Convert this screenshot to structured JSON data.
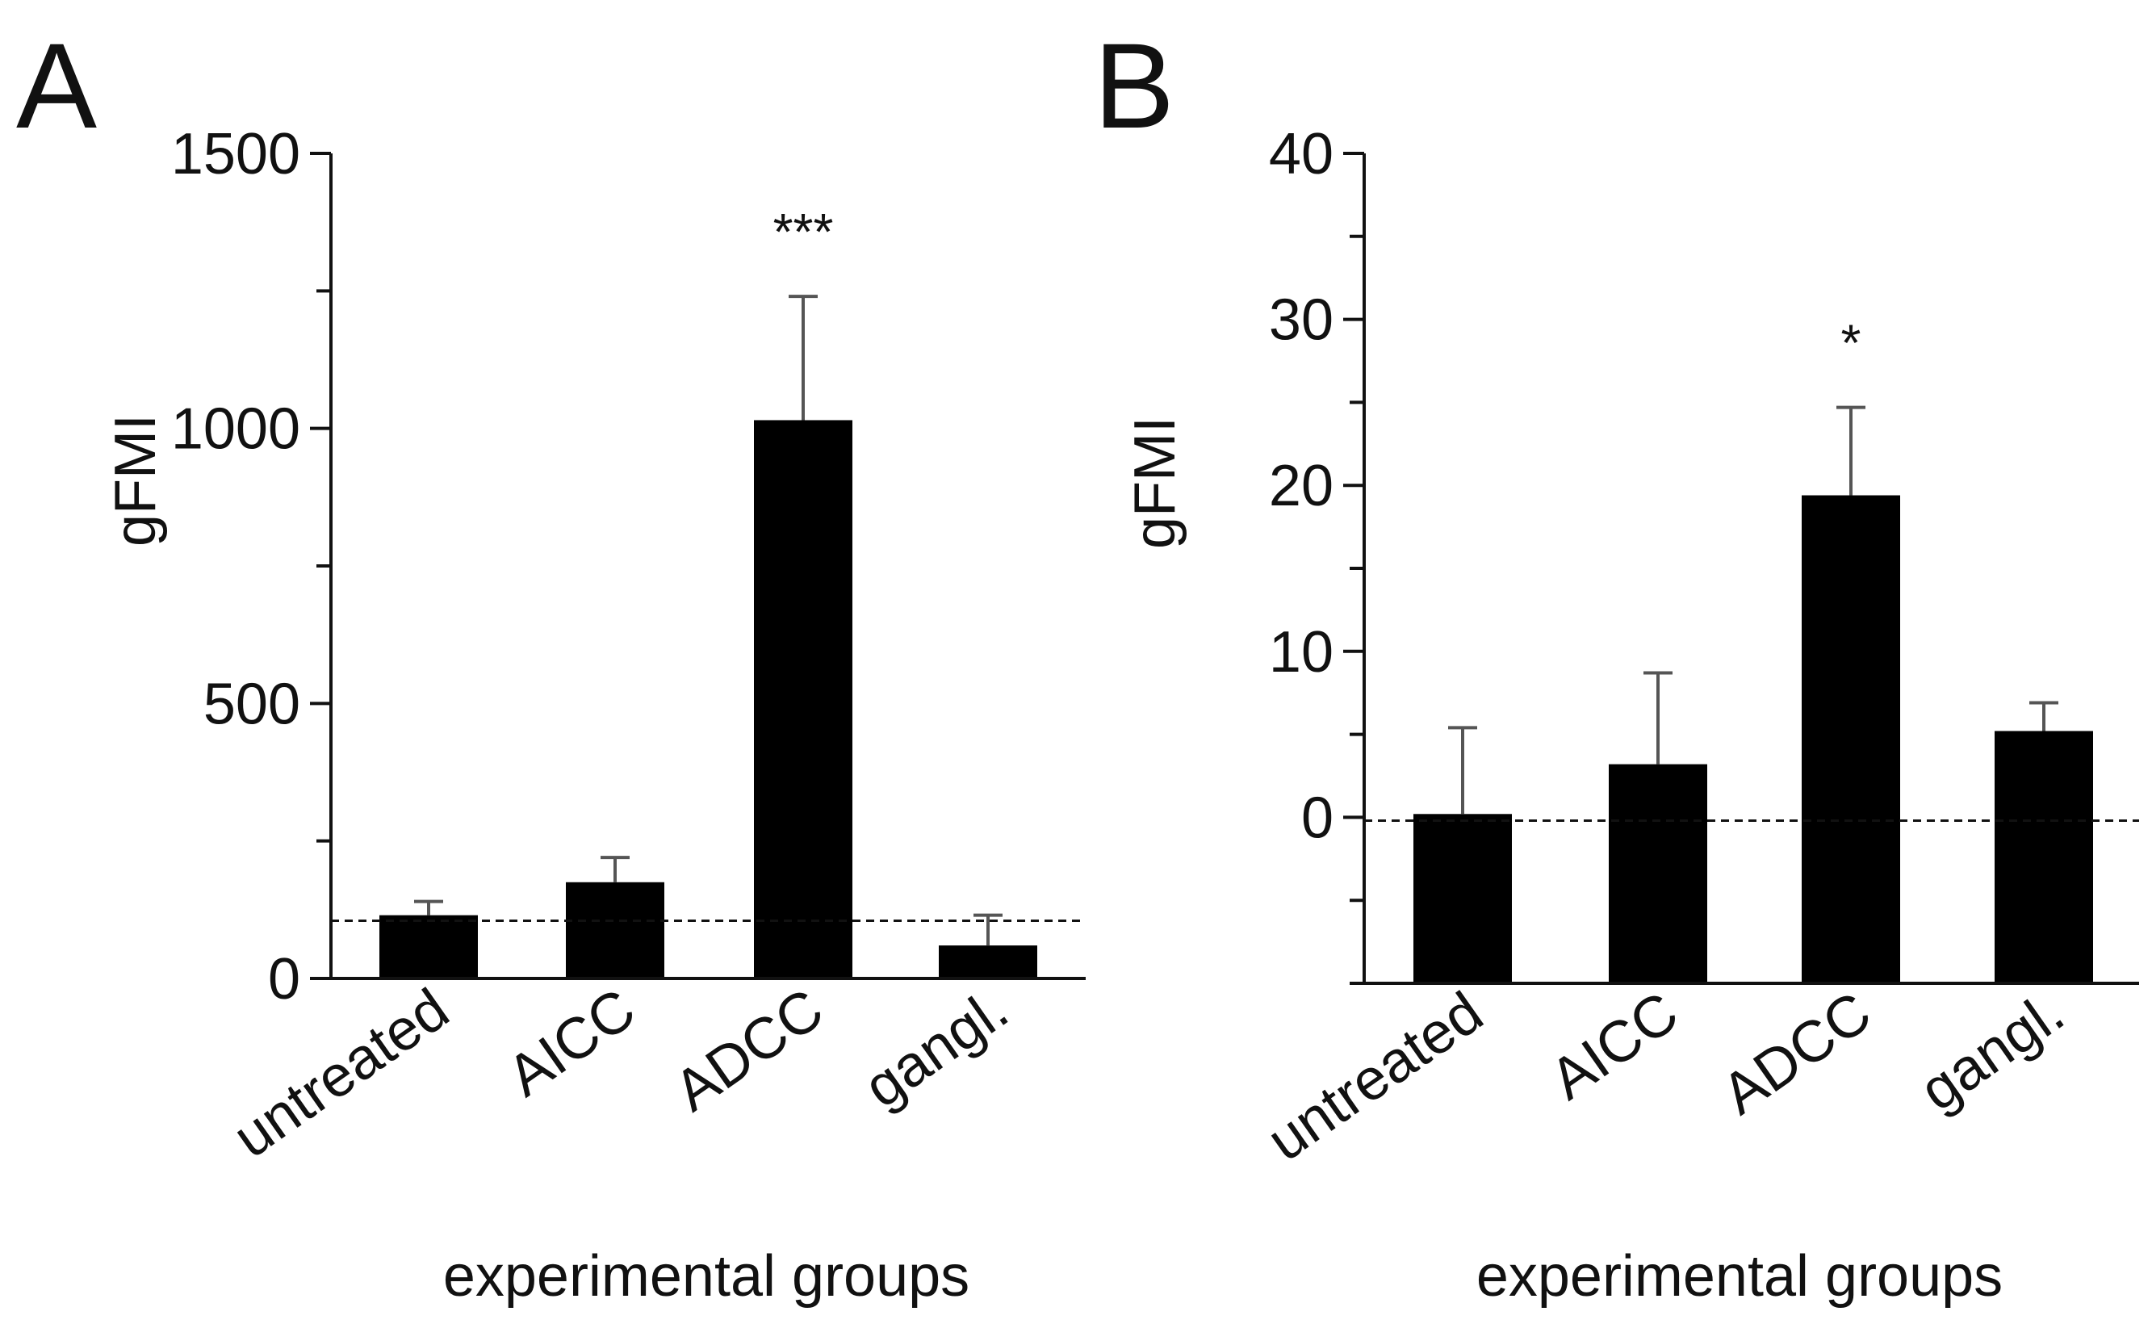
{
  "chart_data": [
    {
      "panel": "A",
      "type": "bar",
      "categories": [
        "untreated",
        "AICC",
        "ADCC",
        "gangl."
      ],
      "values": [
        115,
        175,
        1015,
        60
      ],
      "error": [
        25,
        45,
        225,
        55
      ],
      "significance": [
        "",
        "",
        "***",
        ""
      ],
      "baseline": 105,
      "ylabel": "gFMI",
      "xlabel": "experimental  groups",
      "ylim": [
        0,
        1500
      ],
      "yticks": [
        0,
        500,
        1000,
        1500
      ],
      "yticks_labels": [
        "0",
        "500",
        "1000",
        "1500"
      ],
      "colors": {
        "bar": "#000000",
        "error": "#555555",
        "axis": "#111111"
      }
    },
    {
      "panel": "B",
      "type": "bar",
      "categories": [
        "untreated",
        "AICC",
        "ADCC",
        "gangl."
      ],
      "values": [
        0.2,
        3.2,
        19.4,
        5.2
      ],
      "error": [
        5.2,
        5.5,
        5.3,
        1.7
      ],
      "significance": [
        "",
        "",
        "*",
        ""
      ],
      "baseline": -0.2,
      "ylabel": "gFMI",
      "xlabel": "experimental  groups",
      "ylim": [
        -10,
        40
      ],
      "yticks": [
        0,
        10,
        20,
        30,
        40
      ],
      "yticks_labels": [
        "0",
        "10",
        "20",
        "30",
        "40"
      ],
      "colors": {
        "bar": "#000000",
        "error": "#555555",
        "axis": "#111111"
      }
    }
  ]
}
